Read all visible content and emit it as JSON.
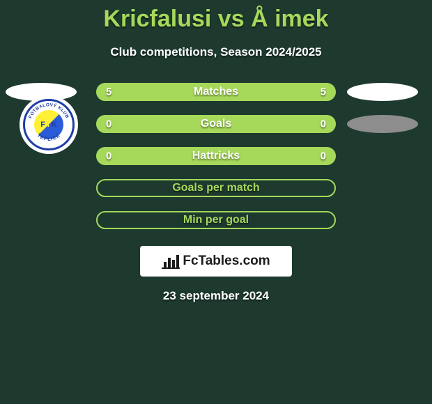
{
  "header": {
    "title": "Kricfalusi vs Å imek",
    "subtitle": "Club competitions, Season 2024/2025"
  },
  "rows": [
    {
      "label": "Matches",
      "left_value": "5",
      "right_value": "5",
      "fill_color": "#a6d85a",
      "border_color": "#a6d85a",
      "label_color": "#ffffff",
      "show_left_ellipse": true,
      "left_ellipse_style": "white",
      "show_right_ellipse": true,
      "right_ellipse_style": "white",
      "show_club_badge": false
    },
    {
      "label": "Goals",
      "left_value": "0",
      "right_value": "0",
      "fill_color": "#a6d85a",
      "border_color": "#a6d85a",
      "label_color": "#ffffff",
      "show_left_ellipse": false,
      "show_club_badge": true,
      "show_right_ellipse": true,
      "right_ellipse_style": "gray"
    },
    {
      "label": "Hattricks",
      "left_value": "0",
      "right_value": "0",
      "fill_color": "#a6d85a",
      "border_color": "#a6d85a",
      "label_color": "#ffffff",
      "show_left_ellipse": false,
      "show_club_badge": false,
      "show_right_ellipse": false
    },
    {
      "label": "Goals per match",
      "left_value": "",
      "right_value": "",
      "fill_color": "transparent",
      "border_color": "#a6d85a",
      "label_color": "#a6d85a",
      "show_left_ellipse": false,
      "show_club_badge": false,
      "show_right_ellipse": false
    },
    {
      "label": "Min per goal",
      "left_value": "",
      "right_value": "",
      "fill_color": "transparent",
      "border_color": "#a6d85a",
      "label_color": "#a6d85a",
      "show_left_ellipse": false,
      "show_club_badge": false,
      "show_right_ellipse": false
    }
  ],
  "club_badge": {
    "ring_text_top": "FOTBALOVÝ KLUB",
    "ring_text_bottom": "TEPLICE",
    "center_letters": [
      "F",
      "T",
      "K"
    ],
    "ring_color": "#1f3fa8",
    "yellow": "#fef035",
    "blue": "#2a5bd8"
  },
  "branding": {
    "text": "FcTables.com",
    "bar_color": "#1b1b1b"
  },
  "footer": {
    "date": "23 september 2024"
  },
  "colors": {
    "background": "#1e3a2f",
    "accent": "#a6d85a"
  }
}
